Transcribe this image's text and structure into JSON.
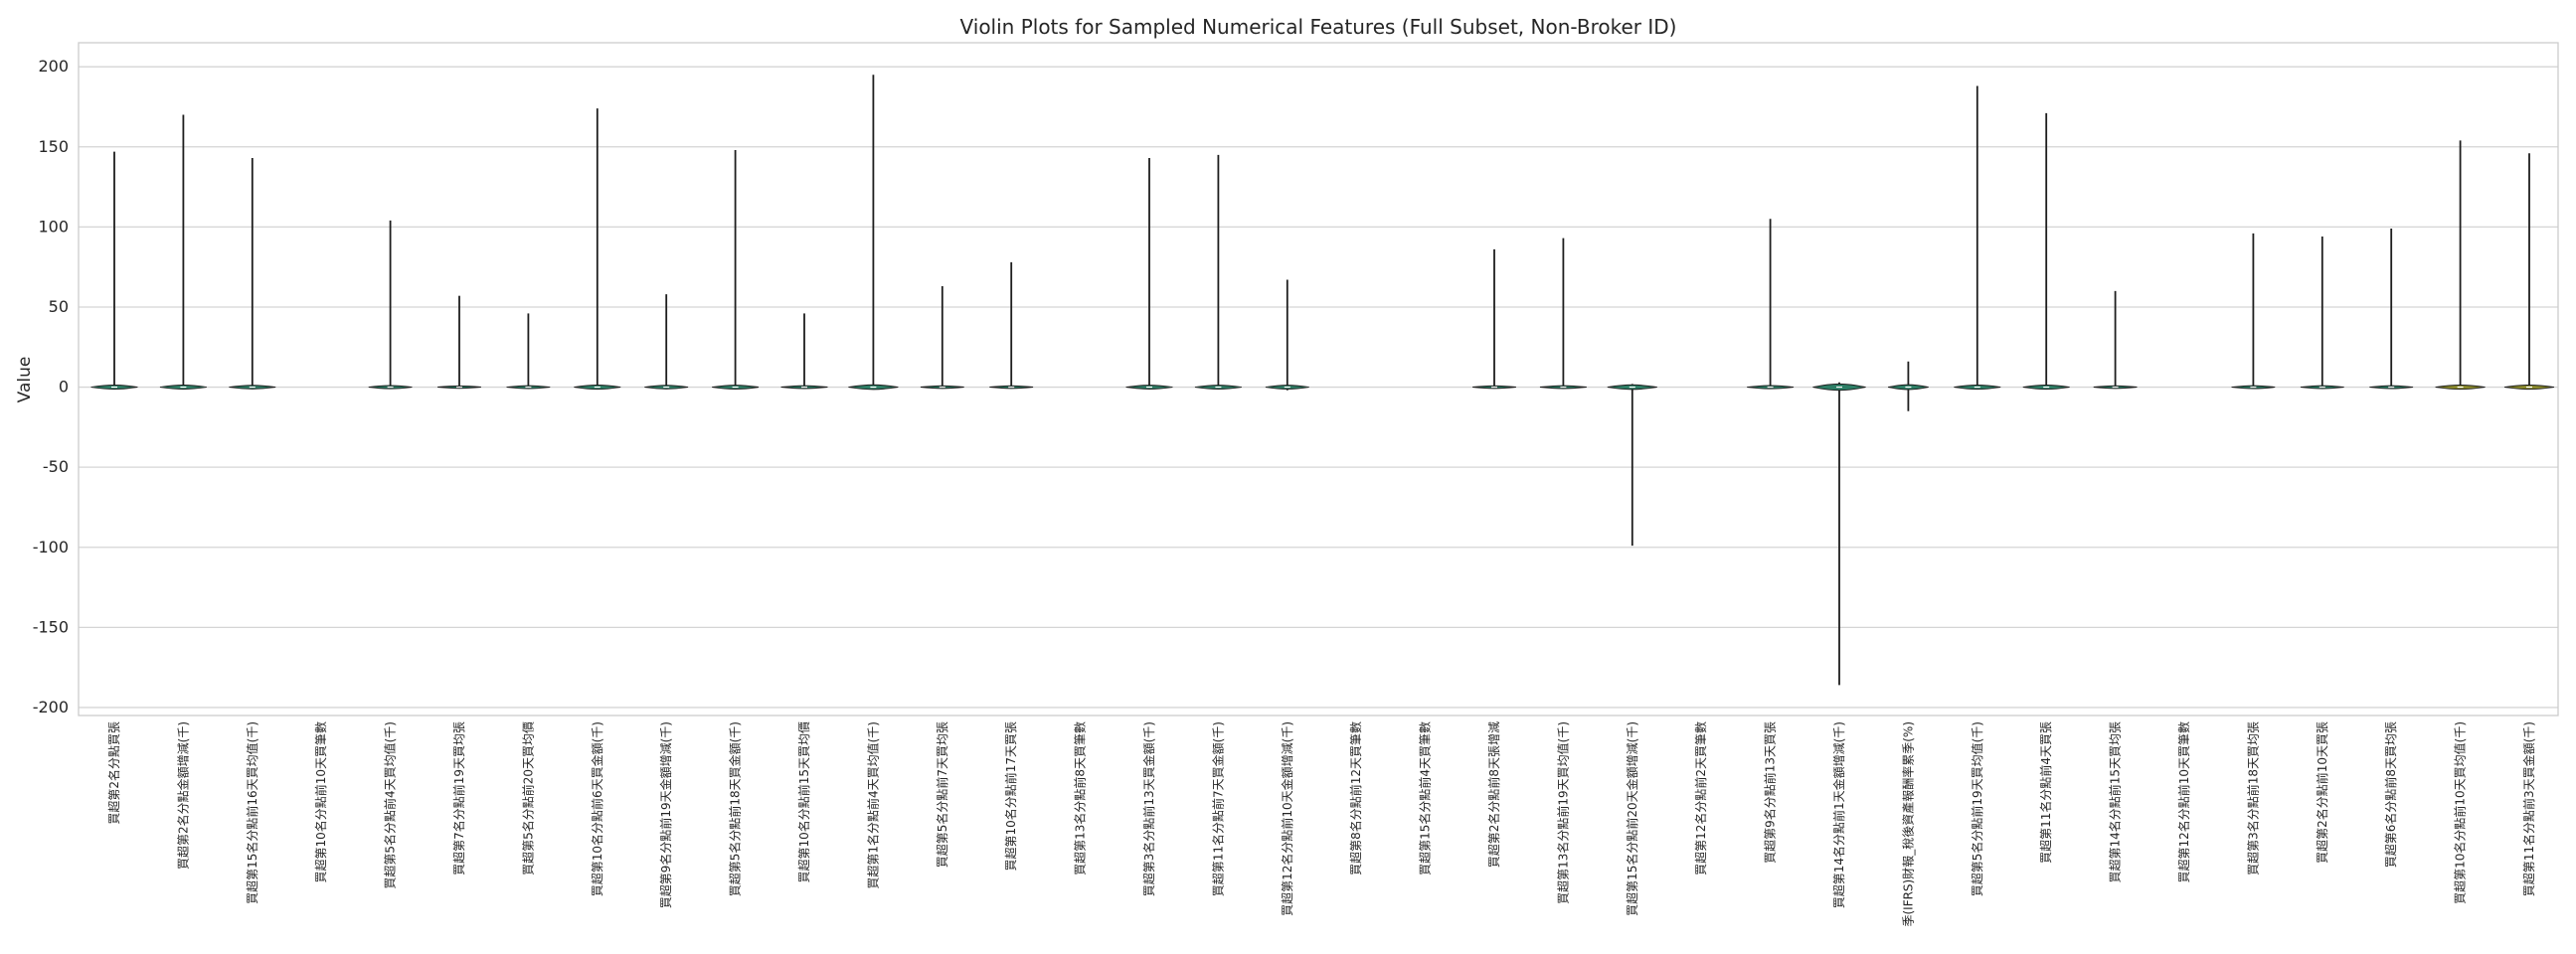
{
  "chart_data": {
    "type": "violin",
    "title": "Violin Plots for Sampled Numerical Features (Full Subset, Non-Broker ID)",
    "xlabel": "",
    "ylabel": "Value",
    "ylim": [
      -205,
      215
    ],
    "yticks": [
      200,
      150,
      100,
      50,
      0,
      -50,
      -100,
      -150,
      -200
    ],
    "ytick_labels": [
      "200",
      "150",
      "100",
      "50",
      "0",
      "-50",
      "-100",
      "-150",
      "-200"
    ],
    "grid": true,
    "colors": {
      "body": "#2d7f66",
      "body_alt": "#8a8a2a",
      "whisker": "#1e1e1e",
      "grid": "#d5d5d5",
      "frame": "#cccccc"
    },
    "categories": [
      "買超第2名分點買張",
      "買超第2名分點金額增減(千)",
      "買超第15名分點前16天買均值(千)",
      "買超第10名分點前10天買筆數",
      "買超第5名分點前4天買均值(千)",
      "買超第7名分點前19天買均張",
      "買超第5名分點前20天買均價",
      "買超第10名分點前6天買金額(千)",
      "買超第9名分點前19天金額增減(千)",
      "買超第5名分點前18天買金額(千)",
      "買超第10名分點前15天買均價",
      "買超第1名分點前4天買均值(千)",
      "買超第5名分點前7天買均張",
      "買超第10名分點前17天買張",
      "買超第13名分點前8天買筆數",
      "買超第3名分點前13天買金額(千)",
      "買超第11名分點前7天買金額(千)",
      "買超第12名分點前10天金額增減(千)",
      "買超第8名分點前12天買筆數",
      "買超第15名分點前4天買筆數",
      "買超第2名分點前8天張增減",
      "買超第13名分點前19天買均值(千)",
      "買超第15名分點前20天金額增減(千)",
      "買超第12名分點前2天買筆數",
      "買超第9名分點前13天買張",
      "買超第14名分點前1天金額增減(千)",
      "季(IFRS)財報_稅後資產報酬率累季(%)",
      "買超第5名分點前19天買均值(千)",
      "買超第11名分點前4天買張",
      "買超第14名分點前15天買均張",
      "買超第12名分點前10天買筆數",
      "買超第3名分點前18天買均張",
      "買超第2名分點前10天買張",
      "買超第6名分點前8天買均張",
      "買超第10名分點前10天買均值(千)",
      "買超第11名分點前3天買金額(千)"
    ],
    "max_values": [
      147,
      170,
      143,
      null,
      104,
      57,
      46,
      174,
      58,
      148,
      46,
      195,
      63,
      78,
      null,
      143,
      145,
      67,
      null,
      null,
      86,
      93,
      2,
      null,
      105,
      3,
      16,
      188,
      171,
      60,
      null,
      96,
      94,
      99,
      154,
      146
    ],
    "min_values": [
      0,
      0,
      0,
      null,
      0,
      0,
      0,
      0,
      0,
      0,
      0,
      0,
      0,
      0,
      null,
      0,
      0,
      -2,
      null,
      null,
      0,
      0,
      -99,
      null,
      0,
      -186,
      -15,
      0,
      0,
      0,
      null,
      0,
      0,
      0,
      0,
      0
    ],
    "body_halfwidth": [
      0.75,
      0.75,
      0.75,
      null,
      0.7,
      0.7,
      0.7,
      0.75,
      0.7,
      0.75,
      0.75,
      0.8,
      0.7,
      0.7,
      null,
      0.75,
      0.75,
      0.7,
      null,
      null,
      0.7,
      0.75,
      0.8,
      null,
      0.75,
      0.85,
      0.65,
      0.75,
      0.75,
      0.7,
      null,
      0.7,
      0.7,
      0.7,
      0.8,
      0.8
    ],
    "body_height": [
      2.5,
      2.5,
      2.2,
      null,
      2,
      1.5,
      1.8,
      2.6,
      2.2,
      2.4,
      1.8,
      2.8,
      1.6,
      1.6,
      null,
      2.4,
      2.4,
      2.4,
      null,
      null,
      1.6,
      1.8,
      2.8,
      null,
      2,
      4,
      3,
      2.6,
      2.6,
      1.6,
      null,
      1.8,
      1.8,
      1.8,
      2.6,
      2.6
    ]
  }
}
